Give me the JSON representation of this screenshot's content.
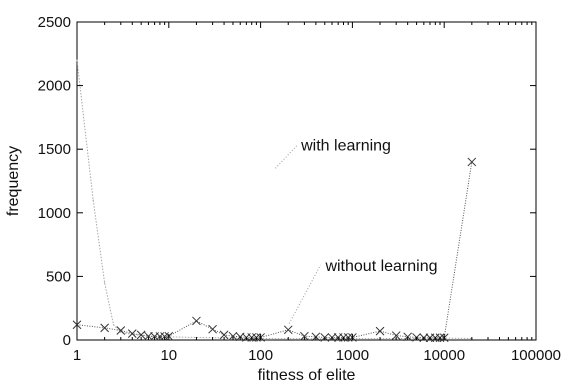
{
  "chart_data": {
    "type": "line",
    "xlabel": "fitness of elite",
    "ylabel": "frequency",
    "xscale": "log",
    "xlim": [
      1,
      100000
    ],
    "ylim": [
      0,
      2500
    ],
    "grid": false,
    "legend": "none",
    "x_ticks": [
      "1",
      "10",
      "100",
      "1000",
      "10000",
      "100000"
    ],
    "y_ticks": [
      "0",
      "500",
      "1000",
      "1500",
      "2000",
      "2500"
    ],
    "series": [
      {
        "label_id": "with-learning",
        "color": "#a8a8a8",
        "marker": "none",
        "points": [
          [
            1,
            2200
          ],
          [
            1.5,
            1100
          ],
          [
            2,
            450
          ],
          [
            2.5,
            120
          ],
          [
            3,
            60
          ],
          [
            4,
            45
          ],
          [
            5,
            35
          ],
          [
            6,
            30
          ],
          [
            8,
            28
          ],
          [
            10,
            25
          ],
          [
            20,
            20
          ],
          [
            30,
            18
          ],
          [
            50,
            15
          ],
          [
            100,
            12
          ],
          [
            300,
            10
          ],
          [
            1000,
            10
          ],
          [
            3000,
            12
          ],
          [
            10000,
            15
          ],
          [
            20000,
            12
          ]
        ]
      },
      {
        "label_id": "without-learning",
        "color": "#555555",
        "marker": "x",
        "points": [
          [
            1,
            120
          ],
          [
            2,
            95
          ],
          [
            3,
            75
          ],
          [
            4,
            50
          ],
          [
            5,
            40
          ],
          [
            6,
            30
          ],
          [
            7,
            28
          ],
          [
            8,
            28
          ],
          [
            9,
            28
          ],
          [
            10,
            30
          ],
          [
            20,
            150
          ],
          [
            30,
            85
          ],
          [
            40,
            40
          ],
          [
            50,
            30
          ],
          [
            60,
            25
          ],
          [
            70,
            20
          ],
          [
            80,
            20
          ],
          [
            90,
            20
          ],
          [
            100,
            20
          ],
          [
            200,
            80
          ],
          [
            300,
            30
          ],
          [
            400,
            25
          ],
          [
            500,
            20
          ],
          [
            600,
            20
          ],
          [
            700,
            20
          ],
          [
            800,
            20
          ],
          [
            900,
            20
          ],
          [
            1000,
            20
          ],
          [
            2000,
            70
          ],
          [
            3000,
            35
          ],
          [
            4000,
            25
          ],
          [
            5000,
            20
          ],
          [
            6000,
            18
          ],
          [
            7000,
            18
          ],
          [
            8000,
            18
          ],
          [
            9000,
            18
          ],
          [
            10000,
            18
          ],
          [
            20000,
            1400
          ]
        ]
      }
    ],
    "annotations": [
      {
        "id": "with-learning",
        "text": "with learning",
        "x": 250,
        "y": 1530,
        "from": [
          145,
          1350
        ],
        "to": [
          250,
          1530
        ]
      },
      {
        "id": "without-learning",
        "text": "without learning",
        "x": 460,
        "y": 580,
        "from": [
          205,
          130
        ],
        "to": [
          450,
          590
        ]
      }
    ]
  }
}
